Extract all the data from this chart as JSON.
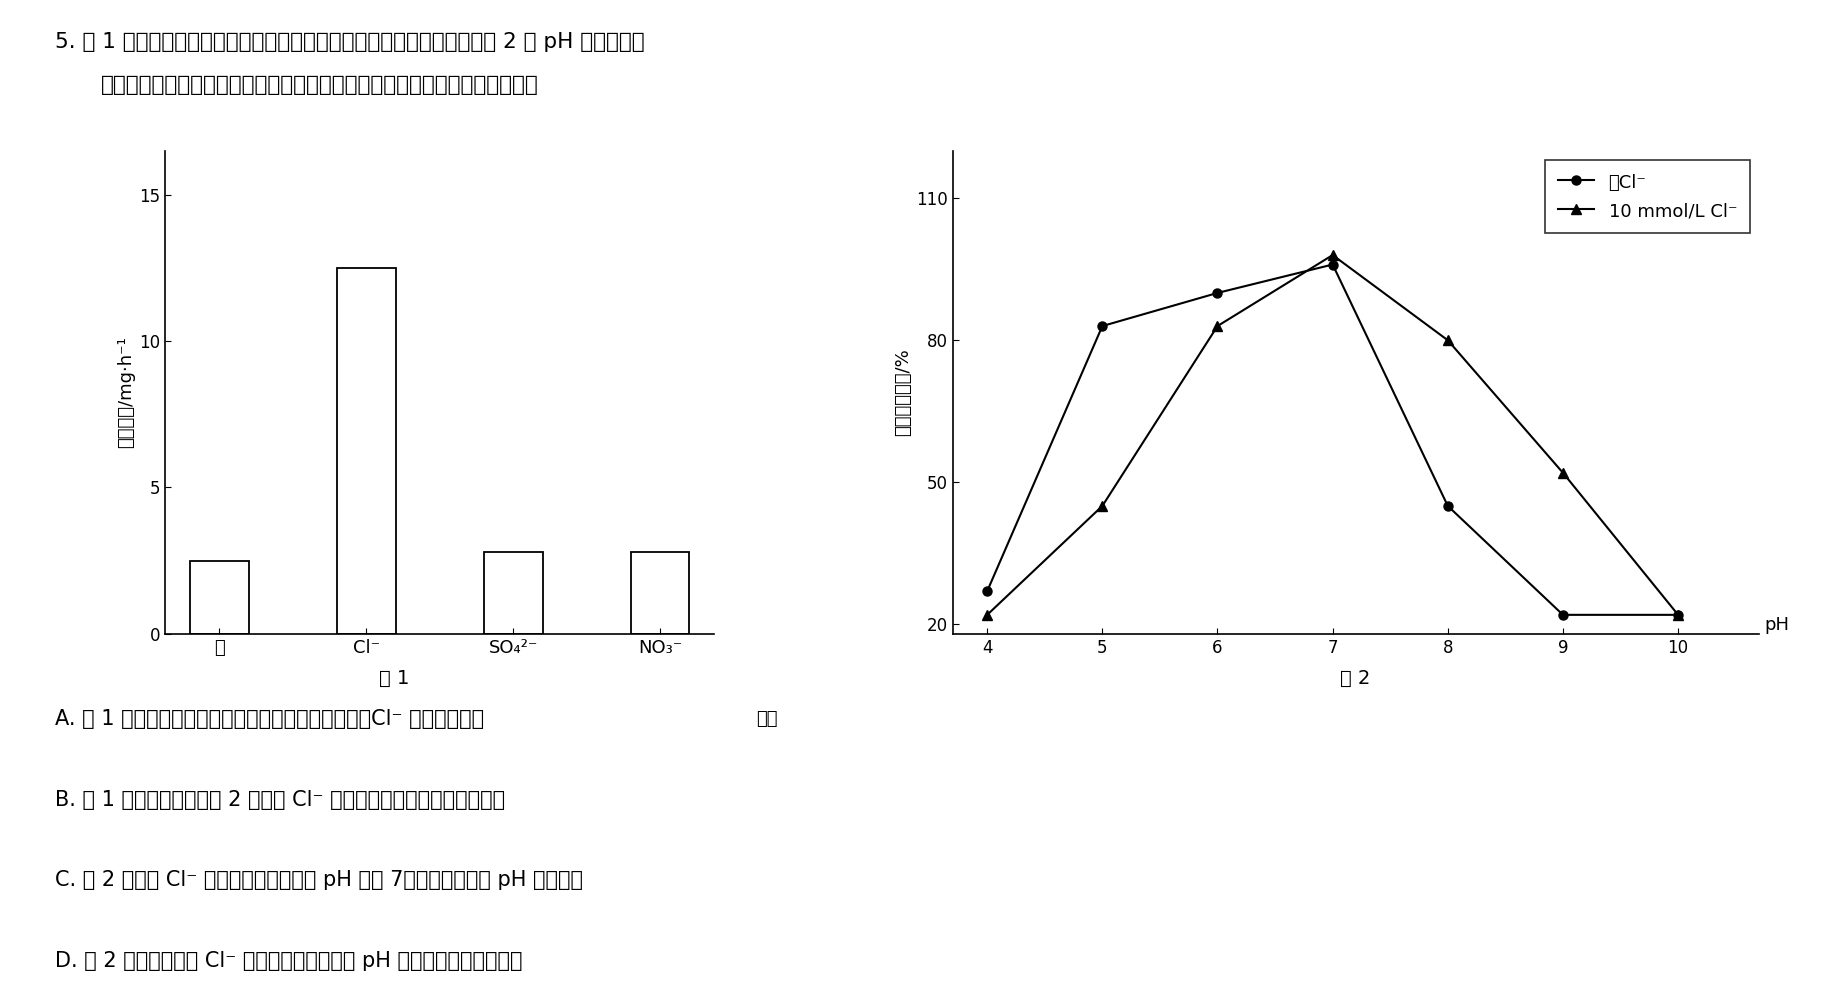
{
  "fig1": {
    "categories": [
      "水",
      "Cl⁻",
      "SO₄²⁻",
      "NO₃⁻"
    ],
    "values": [
      2.5,
      12.5,
      2.8,
      2.8
    ],
    "ylabel": "反应速率/mg·h⁻¹",
    "yticks": [
      0,
      5,
      10,
      15
    ],
    "xlabel_extra": "种类",
    "title": "图 1"
  },
  "fig2": {
    "line1_label": "无Cl⁻",
    "line2_label": "10 mmol/L Cl⁻",
    "line1_x": [
      4,
      5,
      6,
      7,
      8,
      9,
      10
    ],
    "line1_y": [
      27,
      83,
      90,
      96,
      45,
      22,
      22
    ],
    "line2_x": [
      4,
      5,
      6,
      7,
      8,
      9,
      10
    ],
    "line2_y": [
      22,
      45,
      83,
      98,
      80,
      52,
      22
    ],
    "ylabel": "反应相对速率/%",
    "xlabel": "pH",
    "yticks": [
      20,
      50,
      80,
      110
    ],
    "xticks": [
      4,
      5,
      6,
      7,
      8,
      9,
      10
    ],
    "title": "图 2"
  },
  "question_line1": "5. 图 1 为水和不同阴离子对胰淠粉酶催化淠粉水解的反应速率的影响，图 2 为 pH 对不同条件",
  "question_line2": "下胰淠粉酶催化淠粉水解的反应速率的影响。下列对实验结果的分析错误的是",
  "choiceA": "A. 图 1 说明不同阴离子对该酶促反应速率影响不同，Cl⁻ 促进效应明显",
  "choiceB": "B. 图 1 设置水处理组、图 2 设置无 Cl⁻ 处理组的目的都是作为对照实验",
  "choiceC": "C. 图 2 中添加 Cl⁻ 后，胰淠粉酶的最适 pH 变为 7，具有酶活性的 pH 范围增大",
  "choiceD": "D. 图 2 实验中，应将 Cl⁻ 与底物混合后再调节 pH 从而提高实验的准确性",
  "background_color": "#ffffff",
  "text_color": "#000000"
}
